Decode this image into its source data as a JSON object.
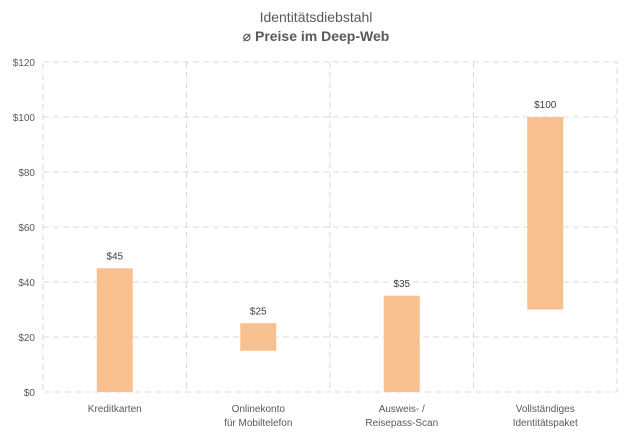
{
  "chart_data": {
    "type": "bar",
    "title": "Identitätsdiebstahl",
    "subtitle": "⌀ Preise im Deep-Web",
    "categories": [
      [
        "Kreditkarten"
      ],
      [
        "Onlinekonto",
        "für Mobiltelefon"
      ],
      [
        "Ausweis- /",
        "Reisepass-Scan"
      ],
      [
        "Vollständiges",
        "Identitätspaket"
      ]
    ],
    "ranges": [
      {
        "low": 0,
        "high": 45
      },
      {
        "low": 15,
        "high": 25
      },
      {
        "low": 0,
        "high": 35
      },
      {
        "low": 30,
        "high": 100
      }
    ],
    "value_labels": [
      "$45",
      "$25",
      "$35",
      "$100"
    ],
    "ylim": [
      0,
      120
    ],
    "yticks": [
      0,
      20,
      40,
      60,
      80,
      100,
      120
    ],
    "ytick_labels": [
      "$0",
      "$20",
      "$40",
      "$60",
      "$80",
      "$100",
      "$120"
    ],
    "grid": true,
    "bar_color": "#F9C08F",
    "grid_color": "#D9D9D9"
  }
}
